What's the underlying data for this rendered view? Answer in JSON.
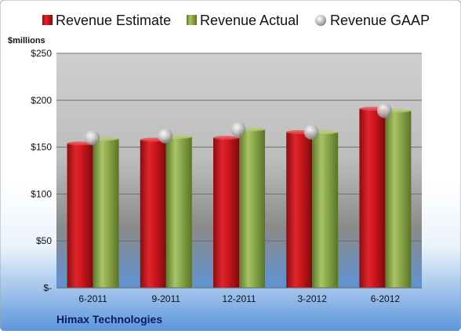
{
  "chart_data": {
    "type": "bar",
    "unit_label": "$millions",
    "categories": [
      "6-2011",
      "9-2011",
      "12-2011",
      "3-2012",
      "6-2012"
    ],
    "series": [
      {
        "name": "Revenue Estimate",
        "kind": "bar",
        "color": "#c0161c",
        "values": [
          154,
          158,
          160,
          166,
          191
        ]
      },
      {
        "name": "Revenue Actual",
        "kind": "bar",
        "color": "#8aa64a",
        "values": [
          159,
          161,
          169,
          166,
          189
        ]
      },
      {
        "name": "Revenue GAAP",
        "kind": "marker",
        "color": "#b0b0b0",
        "values": [
          160,
          162,
          169,
          166,
          189
        ]
      }
    ],
    "y_ticks": [
      {
        "value": 0,
        "label": "$-"
      },
      {
        "value": 50,
        "label": "$50"
      },
      {
        "value": 100,
        "label": "$100"
      },
      {
        "value": 150,
        "label": "$150"
      },
      {
        "value": 200,
        "label": "$200"
      },
      {
        "value": 250,
        "label": "$250"
      }
    ],
    "ylim": [
      0,
      250
    ],
    "grid": true,
    "legend_position": "top",
    "footer": "Himax Technologies"
  }
}
